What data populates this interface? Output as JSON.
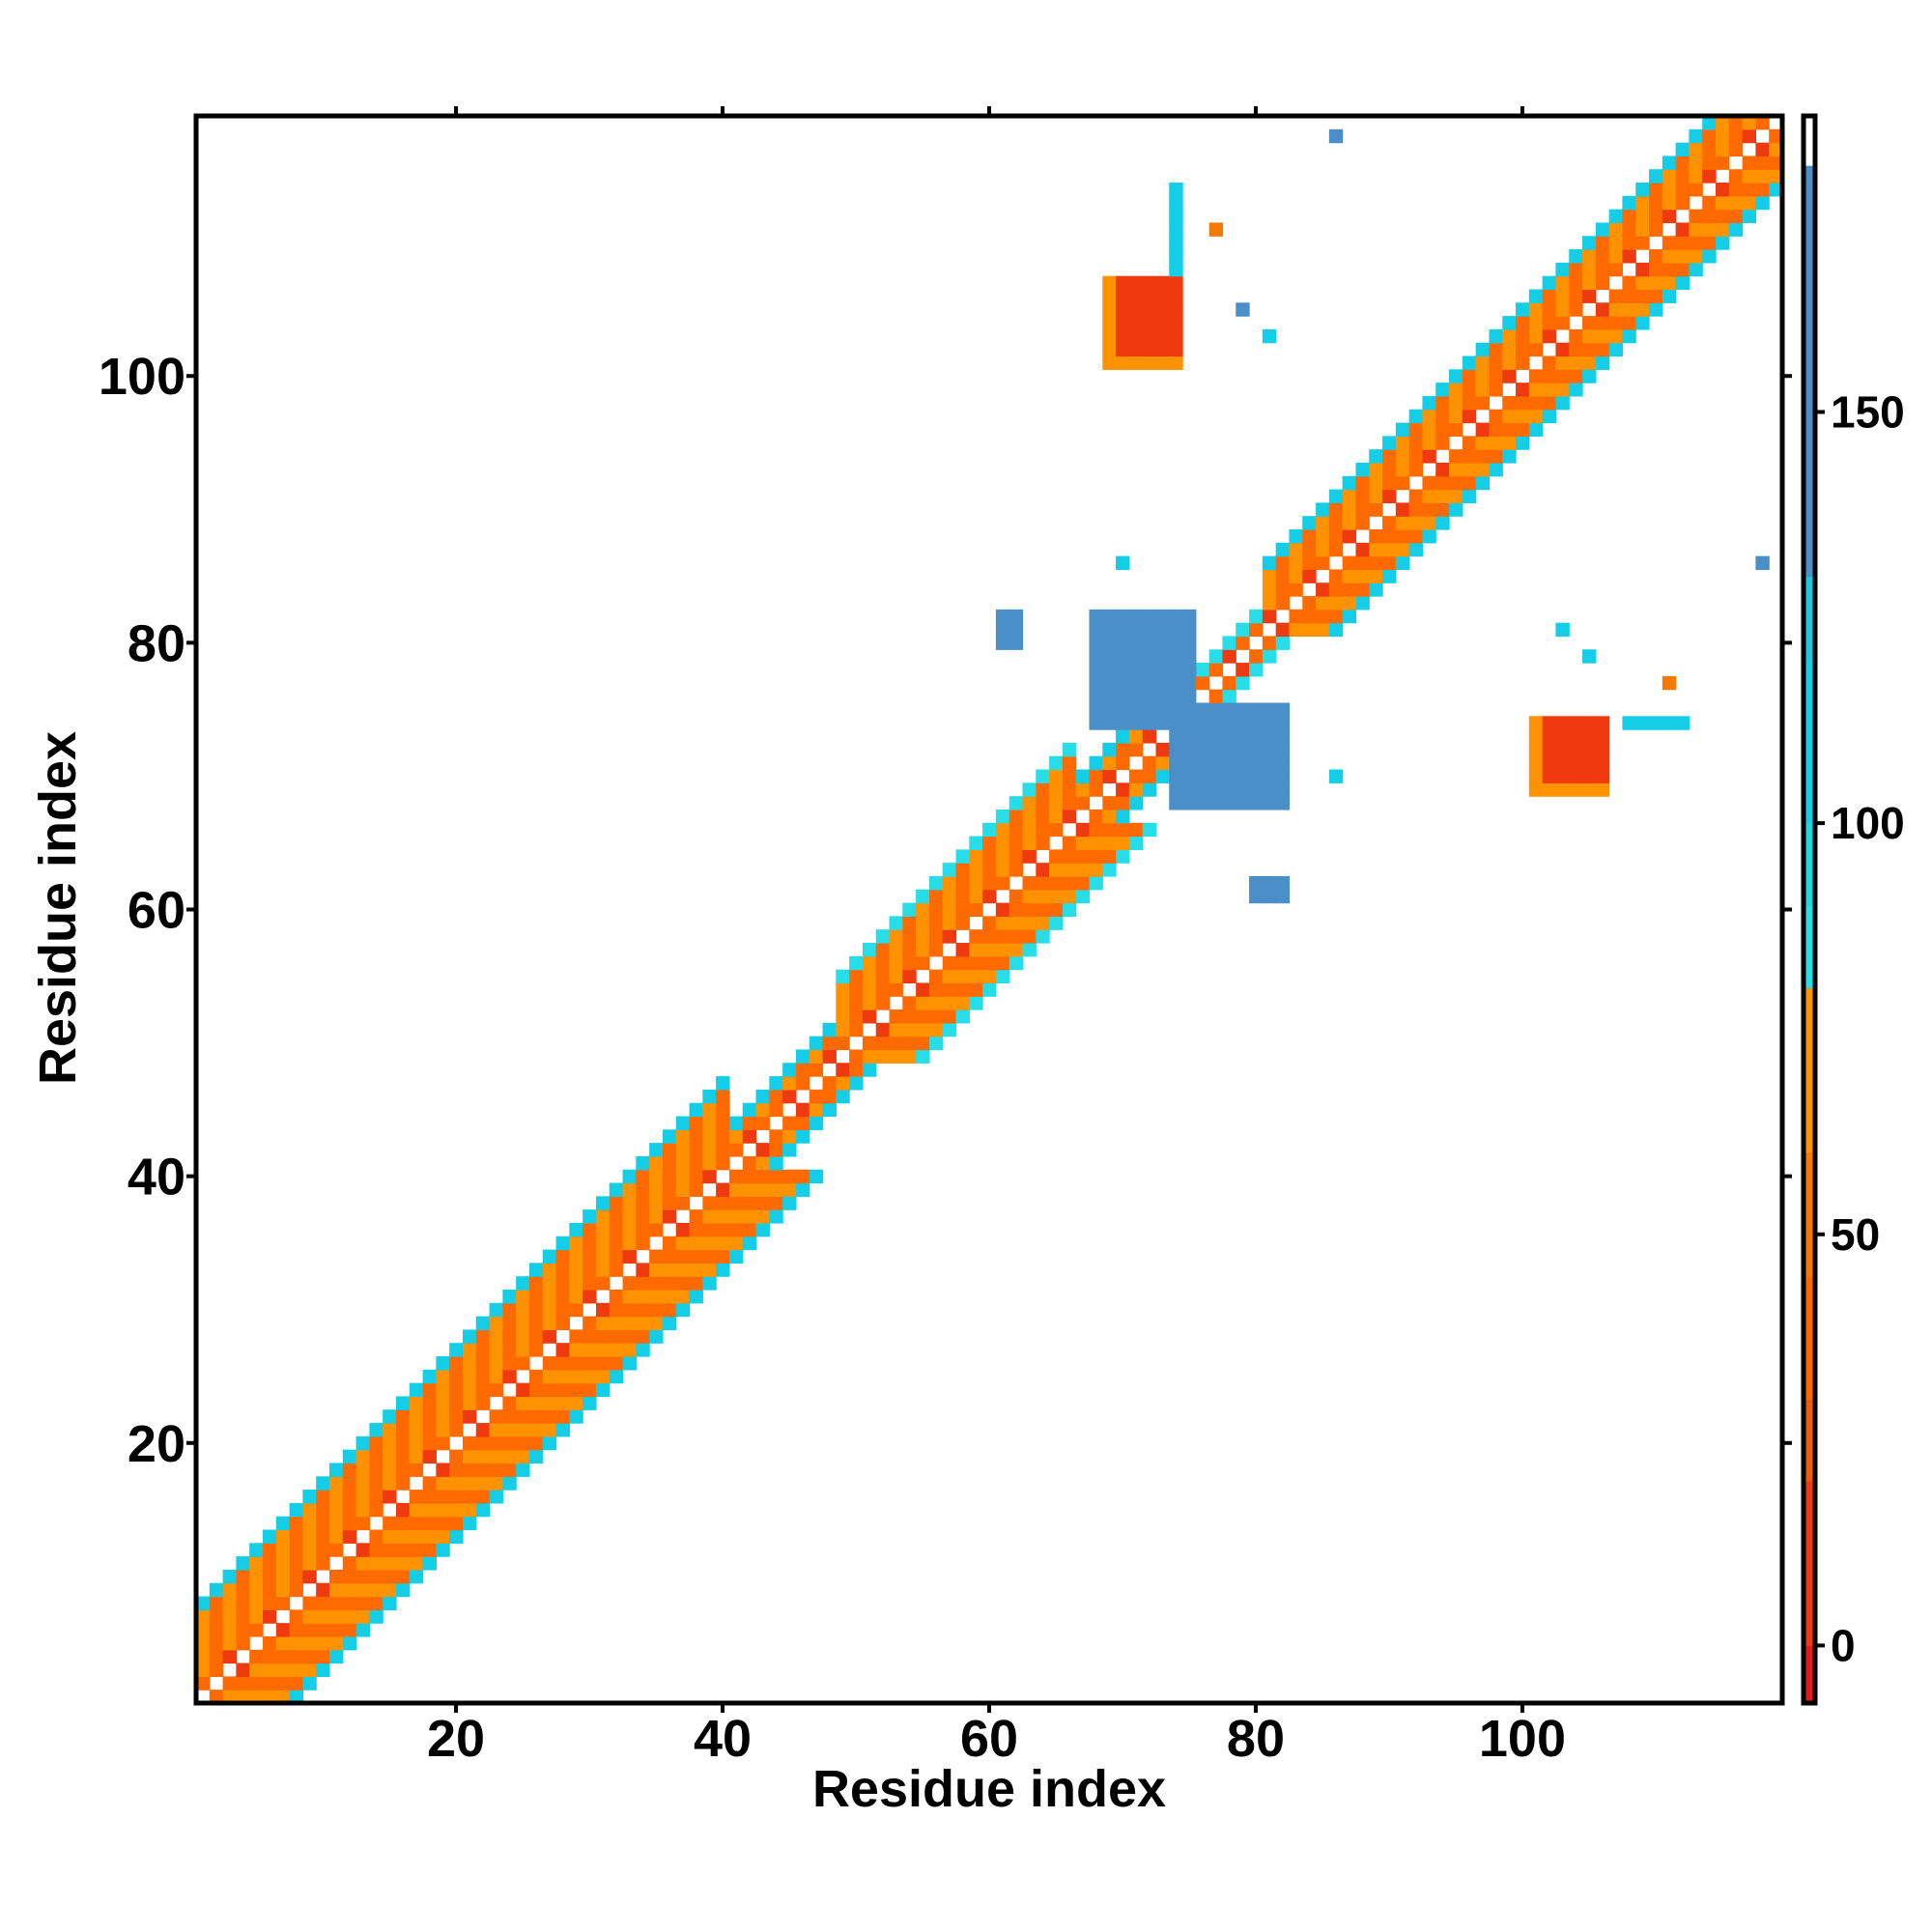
{
  "chart_data": {
    "type": "heatmap",
    "title": "",
    "xlabel": "Residue index",
    "ylabel": "Residue index",
    "xlim": [
      1,
      119
    ],
    "ylim": [
      1,
      119
    ],
    "x_ticks": [
      "20",
      "40",
      "60",
      "80",
      "100"
    ],
    "y_ticks": [
      "20",
      "40",
      "60",
      "80",
      "100"
    ],
    "x_tick_values": [
      20,
      40,
      60,
      80,
      100
    ],
    "y_tick_values": [
      20,
      40,
      60,
      80,
      100
    ],
    "grid": false,
    "legend": "colorbar on right",
    "colorbar": {
      "range": [
        -7,
        186
      ],
      "ticks": [
        "0",
        "50",
        "100",
        "150"
      ],
      "tick_values": [
        0,
        50,
        100,
        150
      ],
      "bands": [
        {
          "from": -7,
          "to": 0,
          "color": "#e41a1c"
        },
        {
          "from": 0,
          "to": 20,
          "color": "#ee3a0e"
        },
        {
          "from": 20,
          "to": 30,
          "color": "#f05a0a"
        },
        {
          "from": 30,
          "to": 45,
          "color": "#ff6a00"
        },
        {
          "from": 45,
          "to": 60,
          "color": "#f47a06"
        },
        {
          "from": 60,
          "to": 80,
          "color": "#ff9200"
        },
        {
          "from": 80,
          "to": 90,
          "color": "#27dde8"
        },
        {
          "from": 90,
          "to": 100,
          "color": "#1ed6e0"
        },
        {
          "from": 100,
          "to": 120,
          "color": "#14cde6"
        },
        {
          "from": 120,
          "to": 130,
          "color": "#1ec8e4"
        },
        {
          "from": 130,
          "to": 180,
          "color": "#4a8fc8"
        },
        {
          "from": 180,
          "to": 186,
          "color": "#ffffff"
        }
      ]
    },
    "diagonal_band": {
      "description": "contact map, symmetric about diagonal",
      "half_width_by_region": [
        {
          "from": 1,
          "to": 40,
          "half_width": 7
        },
        {
          "from": 40,
          "to": 48,
          "half_width": 3
        },
        {
          "from": 48,
          "to": 66,
          "half_width": 6
        },
        {
          "from": 66,
          "to": 72,
          "half_width": 3
        },
        {
          "from": 72,
          "to": 80,
          "half_width": 2
        },
        {
          "from": 80,
          "to": 98,
          "half_width": 5
        },
        {
          "from": 98,
          "to": 119,
          "half_width": 5
        }
      ],
      "pattern_colors": [
        "#ff6a00",
        "#ee3a0e",
        "#ff9200",
        "#f47a06",
        "#27dde8",
        "#14cde6"
      ],
      "inner_diagonal_color": "#ffffff"
    },
    "off_diagonal_clusters": [
      {
        "x": [
          69,
          74
        ],
        "y": [
          101,
          107
        ],
        "color": "#ee3a0e",
        "edge_color": "#ff9200"
      },
      {
        "x": [
          101,
          106
        ],
        "y": [
          69,
          74
        ],
        "color": "#ee3a0e",
        "edge_color": "#ff9200"
      },
      {
        "x": [
          68,
          75
        ],
        "y": [
          74,
          82
        ],
        "color": "#4a8fc8"
      },
      {
        "x": [
          74,
          82
        ],
        "y": [
          68,
          75
        ],
        "color": "#4a8fc8"
      },
      {
        "x": [
          61,
          62
        ],
        "y": [
          80,
          82
        ],
        "color": "#4a8fc8"
      },
      {
        "x": [
          80,
          82
        ],
        "y": [
          61,
          62
        ],
        "color": "#4a8fc8"
      },
      {
        "x": [
          86,
          86
        ],
        "y": [
          118,
          118
        ],
        "color": "#4a8fc8"
      },
      {
        "x": [
          118,
          118
        ],
        "y": [
          86,
          86
        ],
        "color": "#4a8fc8"
      },
      {
        "x": [
          74,
          74
        ],
        "y": [
          108,
          114
        ],
        "color": "#14cde6"
      },
      {
        "x": [
          77,
          77
        ],
        "y": [
          111,
          111
        ],
        "color": "#f47a06"
      },
      {
        "x": [
          79,
          79
        ],
        "y": [
          105,
          105
        ],
        "color": "#4a8fc8"
      },
      {
        "x": [
          81,
          81
        ],
        "y": [
          103,
          103
        ],
        "color": "#14cde6"
      },
      {
        "x": [
          103,
          103
        ],
        "y": [
          81,
          81
        ],
        "color": "#14cde6"
      },
      {
        "x": [
          105,
          105
        ],
        "y": [
          79,
          79
        ],
        "color": "#14cde6"
      },
      {
        "x": [
          111,
          111
        ],
        "y": [
          77,
          77
        ],
        "color": "#f47a06"
      },
      {
        "x": [
          108,
          112
        ],
        "y": [
          74,
          74
        ],
        "color": "#14cde6"
      },
      {
        "x": [
          86,
          86
        ],
        "y": [
          70,
          70
        ],
        "color": "#14cde6"
      },
      {
        "x": [
          70,
          70
        ],
        "y": [
          86,
          86
        ],
        "color": "#14cde6"
      }
    ]
  }
}
